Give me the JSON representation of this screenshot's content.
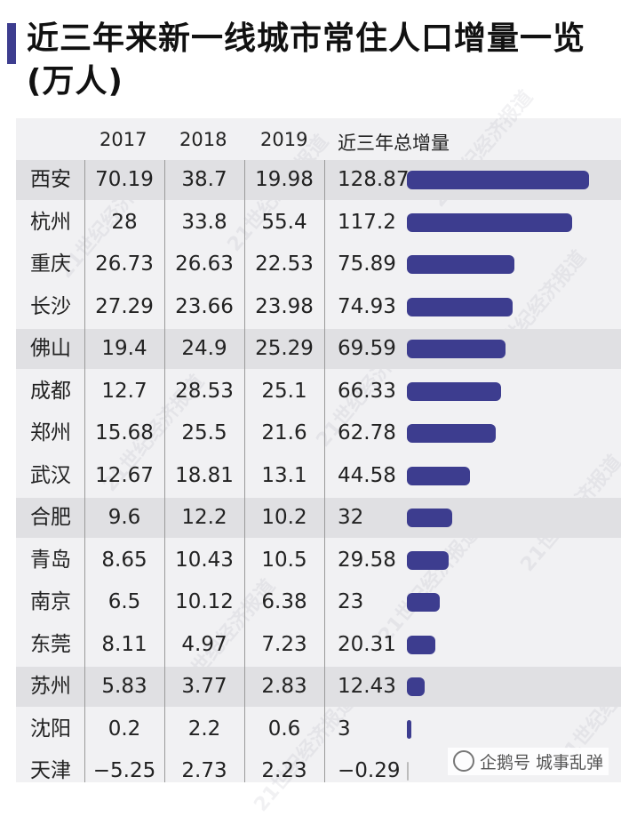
{
  "title": "近三年来新一线城市常住人口增量一览(万人)",
  "watermark": "21世纪经济报道",
  "footer": "企鹅号 城事乱弹",
  "colors": {
    "accent": "#3d3d8f",
    "shade": "#e0e0e3",
    "panel": "#f1f1f3"
  },
  "chart_data": {
    "type": "table",
    "columns": [
      "",
      "2017",
      "2018",
      "2019",
      "近三年总增量"
    ],
    "rows": [
      {
        "city": "西安",
        "y2017": "70.19",
        "y2018": "38.7",
        "y2019": "19.98",
        "total": "128.87",
        "value": 128.87,
        "shaded": true
      },
      {
        "city": "杭州",
        "y2017": "28",
        "y2018": "33.8",
        "y2019": "55.4",
        "total": "117.2",
        "value": 117.2,
        "shaded": false
      },
      {
        "city": "重庆",
        "y2017": "26.73",
        "y2018": "26.63",
        "y2019": "22.53",
        "total": "75.89",
        "value": 75.89,
        "shaded": false
      },
      {
        "city": "长沙",
        "y2017": "27.29",
        "y2018": "23.66",
        "y2019": "23.98",
        "total": "74.93",
        "value": 74.93,
        "shaded": false
      },
      {
        "city": "佛山",
        "y2017": "19.4",
        "y2018": "24.9",
        "y2019": "25.29",
        "total": "69.59",
        "value": 69.59,
        "shaded": true
      },
      {
        "city": "成都",
        "y2017": "12.7",
        "y2018": "28.53",
        "y2019": "25.1",
        "total": "66.33",
        "value": 66.33,
        "shaded": false
      },
      {
        "city": "郑州",
        "y2017": "15.68",
        "y2018": "25.5",
        "y2019": "21.6",
        "total": "62.78",
        "value": 62.78,
        "shaded": false
      },
      {
        "city": "武汉",
        "y2017": "12.67",
        "y2018": "18.81",
        "y2019": "13.1",
        "total": "44.58",
        "value": 44.58,
        "shaded": false
      },
      {
        "city": "合肥",
        "y2017": "9.6",
        "y2018": "12.2",
        "y2019": "10.2",
        "total": "32",
        "value": 32,
        "shaded": true
      },
      {
        "city": "青岛",
        "y2017": "8.65",
        "y2018": "10.43",
        "y2019": "10.5",
        "total": "29.58",
        "value": 29.58,
        "shaded": false
      },
      {
        "city": "南京",
        "y2017": "6.5",
        "y2018": "10.12",
        "y2019": "6.38",
        "total": "23",
        "value": 23,
        "shaded": false
      },
      {
        "city": "东莞",
        "y2017": "8.11",
        "y2018": "4.97",
        "y2019": "7.23",
        "total": "20.31",
        "value": 20.31,
        "shaded": false
      },
      {
        "city": "苏州",
        "y2017": "5.83",
        "y2018": "3.77",
        "y2019": "2.83",
        "total": "12.43",
        "value": 12.43,
        "shaded": true
      },
      {
        "city": "沈阳",
        "y2017": "0.2",
        "y2018": "2.2",
        "y2019": "0.6",
        "total": "3",
        "value": 3,
        "shaded": false
      },
      {
        "city": "天津",
        "y2017": "−5.25",
        "y2018": "2.73",
        "y2019": "2.23",
        "total": "−0.29",
        "value": -0.29,
        "shaded": false
      }
    ],
    "value_max": 128.87
  }
}
